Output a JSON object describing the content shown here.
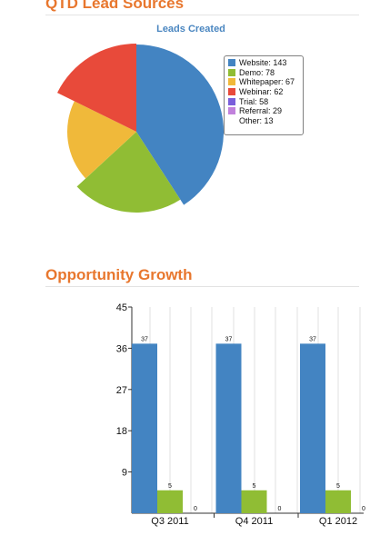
{
  "sections": {
    "lead_sources_title": "QTD Lead Sources",
    "opportunity_title": "Opportunity Growth"
  },
  "chart_data": [
    {
      "type": "pie",
      "title": "Leads Created",
      "legend_position": "right",
      "slices": [
        {
          "label": "Website",
          "value": 143,
          "legend": "Website: 143",
          "color": "#4384c2"
        },
        {
          "label": "Demo",
          "value": 78,
          "legend": "Demo: 78",
          "color": "#90bd34"
        },
        {
          "label": "Whitepaper",
          "value": 67,
          "legend": "Whitepaper: 67",
          "color": "#f0b93a"
        },
        {
          "label": "Webinar",
          "value": 62,
          "legend": "Webinar: 62",
          "color": "#e84a3a"
        },
        {
          "label": "Trial",
          "value": 58,
          "legend": "Trial: 58",
          "color": "#7a5fdb"
        },
        {
          "label": "Referral",
          "value": 29,
          "legend": "Referral: 29",
          "color": "#c181dc"
        },
        {
          "label": "Other",
          "value": 13,
          "legend": "Other: 13",
          "color": ""
        }
      ],
      "visible_slices": [
        "Website",
        "Demo",
        "Whitepaper",
        "Webinar"
      ]
    },
    {
      "type": "bar",
      "categories": [
        "Q3 2011",
        "Q4 2011",
        "Q1 2012"
      ],
      "series": [
        {
          "values": [
            37,
            37,
            37
          ],
          "color": "#4384c2"
        },
        {
          "values": [
            5,
            5,
            5
          ],
          "color": "#90bd34"
        },
        {
          "values": [
            0,
            0,
            0
          ],
          "color": "#e84a3a"
        }
      ],
      "y_ticks": [
        9,
        18,
        27,
        36,
        45
      ],
      "ylim": [
        0,
        45
      ],
      "grid": true,
      "xlabel": "",
      "ylabel": ""
    }
  ]
}
